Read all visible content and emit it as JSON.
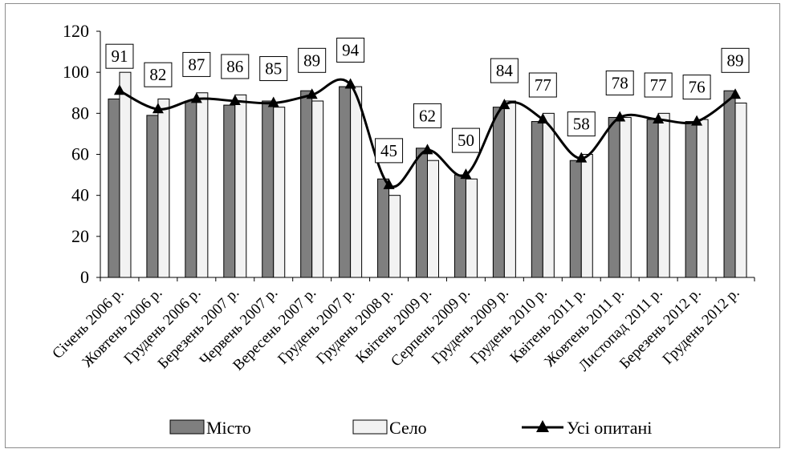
{
  "chart_data": {
    "type": "bar",
    "categories": [
      "Січень 2006 р.",
      "Жовтень 2006 р.",
      "Грудень 2006 р.",
      "Березень 2007 р.",
      "Червень 2007 р.",
      "Вересень 2007 р.",
      "Грудень 2007 р.",
      "Грудень 2008 р.",
      "Квітень 2009 р.",
      "Серпень 2009 р.",
      "Грудень 2009 р.",
      "Грудень 2010 р.",
      "Квітень 2011 р.",
      "Жовтень 2011 р.",
      "Листопад 2011 р.",
      "Березень 2012 р.",
      "Грудень 2012 р."
    ],
    "series": [
      {
        "name": "Місто",
        "kind": "bar",
        "color": "#7f7f7f",
        "values": [
          87,
          79,
          86,
          84,
          86,
          91,
          93,
          48,
          63,
          50,
          83,
          76,
          57,
          78,
          77,
          76,
          91
        ]
      },
      {
        "name": "Село",
        "kind": "bar",
        "color": "#f2f2f2",
        "values": [
          100,
          87,
          90,
          89,
          83,
          86,
          93,
          40,
          57,
          48,
          86,
          80,
          60,
          78,
          80,
          77,
          85
        ]
      },
      {
        "name": "Усі опитані",
        "kind": "line",
        "color": "#000000",
        "marker": "triangle",
        "values": [
          91,
          82,
          87,
          86,
          85,
          89,
          94,
          45,
          62,
          50,
          84,
          77,
          58,
          78,
          77,
          76,
          89
        ]
      }
    ],
    "data_labels": [
      "91",
      "82",
      "87",
      "86",
      "85",
      "89",
      "94",
      "45",
      "62",
      "50",
      "84",
      "77",
      "58",
      "78",
      "77",
      "76",
      "89"
    ],
    "yticks": [
      "0",
      "20",
      "40",
      "60",
      "80",
      "100",
      "120"
    ],
    "ylim": [
      0,
      120
    ],
    "grid": false,
    "legend": {
      "position": "bottom",
      "items": [
        "Місто",
        "Село",
        "Усі опитані"
      ]
    }
  }
}
